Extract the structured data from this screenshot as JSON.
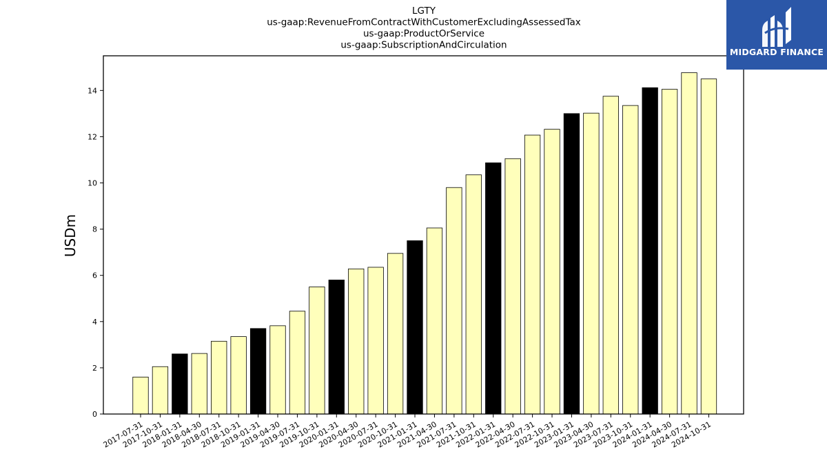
{
  "chart_data": {
    "type": "bar",
    "title_lines": [
      "LGTY",
      "us-gaap:RevenueFromContractWithCustomerExcludingAssessedTax",
      "us-gaap:ProductOrService",
      "us-gaap:SubscriptionAndCirculation"
    ],
    "ylabel": "USDm",
    "xlabel": "",
    "ylim": [
      0,
      15.5
    ],
    "yticks": [
      0,
      2,
      4,
      6,
      8,
      10,
      12,
      14
    ],
    "categories": [
      "2017-07-31",
      "2017-10-31",
      "2018-01-31",
      "2018-04-30",
      "2018-07-31",
      "2018-10-31",
      "2019-01-31",
      "2019-04-30",
      "2019-07-31",
      "2019-10-31",
      "2020-01-31",
      "2020-04-30",
      "2020-07-31",
      "2020-10-31",
      "2021-01-31",
      "2021-04-30",
      "2021-07-31",
      "2021-10-31",
      "2022-01-31",
      "2022-04-30",
      "2022-07-31",
      "2022-10-31",
      "2023-01-31",
      "2023-04-30",
      "2023-07-31",
      "2023-10-31",
      "2024-01-31",
      "2024-04-30",
      "2024-07-31",
      "2024-10-31"
    ],
    "values": [
      1.6,
      2.05,
      2.6,
      2.62,
      3.15,
      3.35,
      3.7,
      3.82,
      4.45,
      5.5,
      5.8,
      6.28,
      6.35,
      6.95,
      7.5,
      8.05,
      9.8,
      10.35,
      10.87,
      11.05,
      12.07,
      12.32,
      13.0,
      13.02,
      13.75,
      13.35,
      14.12,
      14.05,
      14.77,
      14.5
    ],
    "highlight": [
      false,
      false,
      true,
      false,
      false,
      false,
      true,
      false,
      false,
      false,
      true,
      false,
      false,
      false,
      true,
      false,
      false,
      false,
      true,
      false,
      false,
      false,
      true,
      false,
      false,
      false,
      true,
      false,
      false,
      false
    ],
    "colors": {
      "bar": "#ffffbb",
      "highlight": "#000000",
      "edge": "#000000"
    },
    "grid": false,
    "legend": "none"
  },
  "logo": {
    "text": "MIDGARD FINANCE",
    "background": "#2b57a8"
  }
}
